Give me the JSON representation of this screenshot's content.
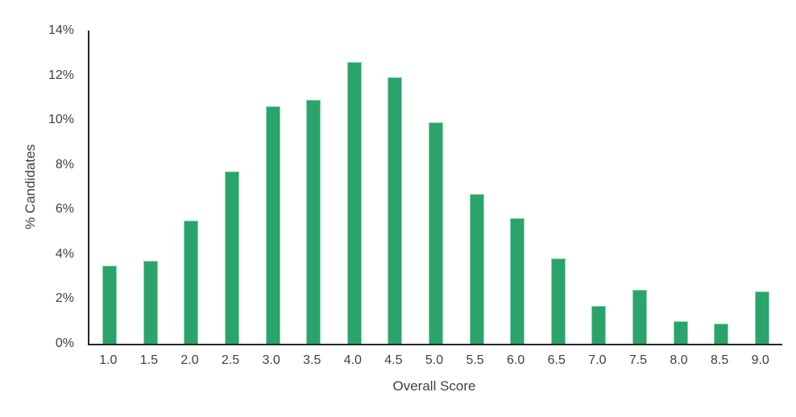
{
  "chart_data": {
    "type": "bar",
    "title": "",
    "xlabel": "Overall Score",
    "ylabel": "% Candidates",
    "categories": [
      "1.0",
      "1.5",
      "2.0",
      "2.5",
      "3.0",
      "3.5",
      "4.0",
      "4.5",
      "5.0",
      "5.5",
      "6.0",
      "6.5",
      "7.0",
      "7.5",
      "8.0",
      "8.5",
      "9.0"
    ],
    "values": [
      3.5,
      3.7,
      5.5,
      7.7,
      10.6,
      10.9,
      12.6,
      11.9,
      9.9,
      6.7,
      5.6,
      3.8,
      1.7,
      2.4,
      1.0,
      0.9,
      2.35
    ],
    "ylim": [
      0,
      14
    ],
    "ytick_step": 2,
    "ytick_labels": [
      "0%",
      "2%",
      "4%",
      "6%",
      "8%",
      "10%",
      "12%",
      "14%"
    ],
    "grid": false,
    "legend": "none",
    "bar_color": "#2AA46A",
    "bar_edge_color": "#8fd3b1",
    "axis_color": "#262626",
    "text_color": "#404040"
  }
}
